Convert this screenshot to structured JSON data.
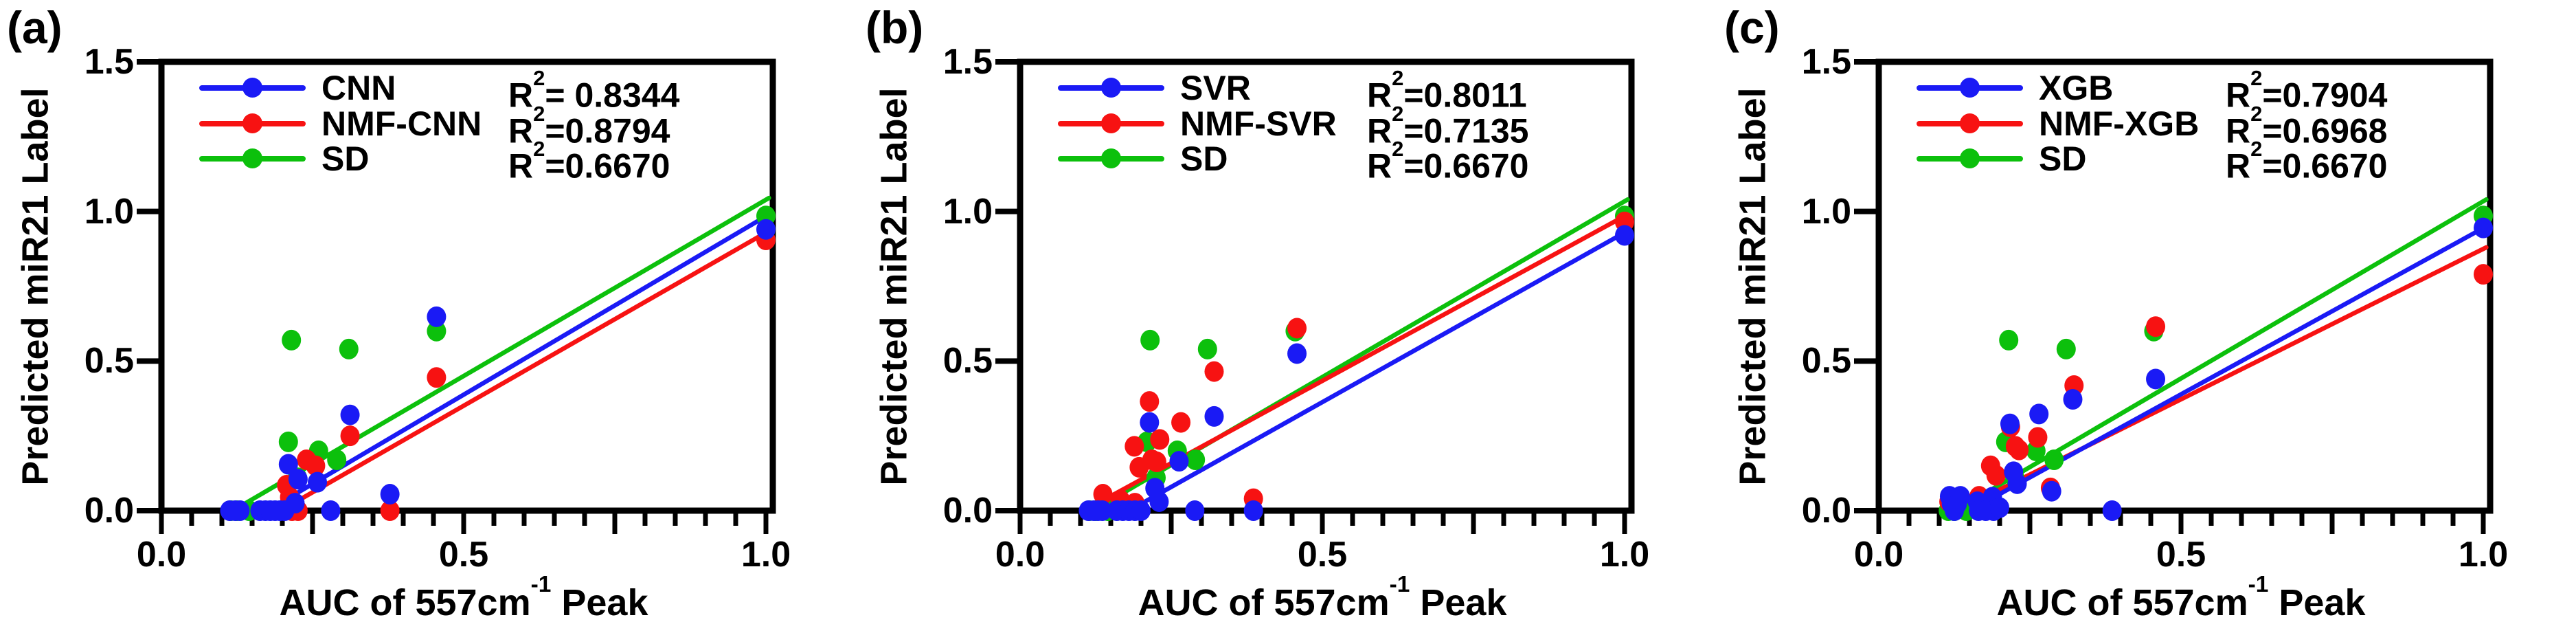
{
  "figure_bg": "#ffffff",
  "colors": {
    "blue": "#1a1af5",
    "red": "#f71212",
    "green": "#0cc00c",
    "axis": "#000000"
  },
  "axes": {
    "x_base": "AUC of 557cm",
    "x_sup": "-1",
    "x_rest": " Peak",
    "y": "Predicted miR21 Label",
    "x_ticks": [
      {
        "v": 0,
        "t": "0.0"
      },
      {
        "v": 0.5,
        "t": "0.5"
      },
      {
        "v": 1.0,
        "t": "1.0"
      }
    ],
    "y_ticks": [
      {
        "v": 0,
        "t": "0.0"
      },
      {
        "v": 0.5,
        "t": "0.5"
      },
      {
        "v": 1.0,
        "t": "1.0"
      },
      {
        "v": 1.5,
        "t": "1.5"
      }
    ],
    "x_minor_step": 0.05,
    "xlim": [
      0,
      1.01
    ],
    "ylim": [
      0,
      1.5
    ],
    "grid": false
  },
  "chart_data": [
    {
      "type": "scatter",
      "panel_label": "(a)",
      "legend_position": "inside top-left",
      "series": [
        {
          "name": "CNN",
          "color_key": "blue",
          "r2_base": "R",
          "r2_sup": "2",
          "r2_rest": "= 0.8344",
          "points": [
            [
              0.113,
              0
            ],
            [
              0.122,
              0
            ],
            [
              0.13,
              0
            ],
            [
              0.163,
              0
            ],
            [
              0.172,
              0
            ],
            [
              0.18,
              0
            ],
            [
              0.188,
              0
            ],
            [
              0.196,
              0
            ],
            [
              0.204,
              0
            ],
            [
              0.21,
              0.155
            ],
            [
              0.221,
              0.025
            ],
            [
              0.226,
              0.105
            ],
            [
              0.258,
              0.095
            ],
            [
              0.28,
              0
            ],
            [
              0.312,
              0.32
            ],
            [
              0.378,
              0.055
            ],
            [
              0.455,
              0.648
            ],
            [
              1.0,
              0.94
            ]
          ],
          "fit_line": [
            0.175,
            0,
            1.005,
            0.99
          ]
        },
        {
          "name": "NMF-CNN",
          "color_key": "red",
          "r2_base": "R",
          "r2_sup": "2",
          "r2_rest": "=0.8794",
          "points": [
            [
              0.207,
              0.085
            ],
            [
              0.212,
              0.045
            ],
            [
              0.216,
              0
            ],
            [
              0.226,
              0
            ],
            [
              0.24,
              0.17
            ],
            [
              0.255,
              0.15
            ],
            [
              0.312,
              0.25
            ],
            [
              0.378,
              0
            ],
            [
              0.455,
              0.445
            ],
            [
              1.0,
              0.905
            ]
          ],
          "fit_line": [
            0.197,
            0,
            1.005,
            0.935
          ]
        },
        {
          "name": "SD",
          "color_key": "green",
          "r2_base": "R",
          "r2_sup": "2",
          "r2_rest": "=0.6670",
          "points": [
            [
              0.115,
              0
            ],
            [
              0.125,
              0
            ],
            [
              0.145,
              0
            ],
            [
              0.21,
              0.23
            ],
            [
              0.215,
              0.57
            ],
            [
              0.225,
              0.11
            ],
            [
              0.26,
              0.2
            ],
            [
              0.29,
              0.17
            ],
            [
              0.31,
              0.54
            ],
            [
              0.455,
              0.6
            ],
            [
              1.0,
              0.985
            ]
          ],
          "fit_line": [
            0.118,
            0,
            1.005,
            1.045
          ]
        }
      ]
    },
    {
      "type": "scatter",
      "panel_label": "(b)",
      "legend_position": "inside top-left",
      "series": [
        {
          "name": "SVR",
          "color_key": "blue",
          "r2_base": "R",
          "r2_sup": "2",
          "r2_rest": "=0.8011",
          "points": [
            [
              0.113,
              0
            ],
            [
              0.122,
              0
            ],
            [
              0.129,
              0
            ],
            [
              0.136,
              0
            ],
            [
              0.16,
              0
            ],
            [
              0.17,
              0
            ],
            [
              0.18,
              0
            ],
            [
              0.19,
              0
            ],
            [
              0.2,
              0
            ],
            [
              0.214,
              0.295
            ],
            [
              0.223,
              0.075
            ],
            [
              0.23,
              0.03
            ],
            [
              0.263,
              0.165
            ],
            [
              0.289,
              0
            ],
            [
              0.321,
              0.315
            ],
            [
              0.386,
              0
            ],
            [
              0.458,
              0.525
            ],
            [
              1.0,
              0.92
            ]
          ],
          "fit_line": [
            0.18,
            0,
            1.005,
            0.935
          ]
        },
        {
          "name": "NMF-SVR",
          "color_key": "red",
          "r2_base": "R",
          "r2_sup": "2",
          "r2_rest": "=0.7135",
          "points": [
            [
              0.137,
              0.055
            ],
            [
              0.166,
              0.035
            ],
            [
              0.189,
              0.215
            ],
            [
              0.19,
              0.025
            ],
            [
              0.197,
              0.145
            ],
            [
              0.214,
              0.365
            ],
            [
              0.218,
              0.17
            ],
            [
              0.226,
              0.163
            ],
            [
              0.231,
              0.238
            ],
            [
              0.266,
              0.295
            ],
            [
              0.321,
              0.465
            ],
            [
              0.386,
              0.04
            ],
            [
              0.458,
              0.61
            ],
            [
              1.0,
              0.965
            ]
          ],
          "fit_line": [
            0.115,
            0.01,
            1.005,
            0.99
          ]
        },
        {
          "name": "SD",
          "color_key": "green",
          "r2_base": "R",
          "r2_sup": "2",
          "r2_rest": "=0.6670",
          "points": [
            [
              0.115,
              0
            ],
            [
              0.125,
              0
            ],
            [
              0.145,
              0
            ],
            [
              0.21,
              0.23
            ],
            [
              0.215,
              0.57
            ],
            [
              0.225,
              0.11
            ],
            [
              0.26,
              0.2
            ],
            [
              0.29,
              0.17
            ],
            [
              0.31,
              0.54
            ],
            [
              0.455,
              0.6
            ],
            [
              1.0,
              0.985
            ]
          ],
          "fit_line": [
            0.12,
            0,
            1.005,
            1.04
          ]
        }
      ]
    },
    {
      "type": "scatter",
      "panel_label": "(c)",
      "legend_position": "inside top-left",
      "series": [
        {
          "name": "XGB",
          "color_key": "blue",
          "r2_base": "R",
          "r2_sup": "2",
          "r2_rest": "=0.7904",
          "points": [
            [
              0.117,
              0.048
            ],
            [
              0.12,
              0.023
            ],
            [
              0.125,
              0
            ],
            [
              0.13,
              0.023
            ],
            [
              0.135,
              0.048
            ],
            [
              0.163,
              0.03
            ],
            [
              0.165,
              0
            ],
            [
              0.177,
              0
            ],
            [
              0.188,
              0.045
            ],
            [
              0.19,
              0
            ],
            [
              0.2,
              0.01
            ],
            [
              0.217,
              0.29
            ],
            [
              0.223,
              0.13
            ],
            [
              0.229,
              0.09
            ],
            [
              0.265,
              0.323
            ],
            [
              0.286,
              0.065
            ],
            [
              0.321,
              0.372
            ],
            [
              0.386,
              0
            ],
            [
              0.458,
              0.44
            ],
            [
              1.0,
              0.945
            ]
          ],
          "fit_line": [
            0.15,
            0,
            1.005,
            0.95
          ]
        },
        {
          "name": "NMF-XGB",
          "color_key": "red",
          "r2_base": "R",
          "r2_sup": "2",
          "r2_rest": "=0.6968",
          "points": [
            [
              0.116,
              0.03
            ],
            [
              0.166,
              0.048
            ],
            [
              0.185,
              0.15
            ],
            [
              0.194,
              0.118
            ],
            [
              0.218,
              0.28
            ],
            [
              0.226,
              0.215
            ],
            [
              0.232,
              0.203
            ],
            [
              0.263,
              0.245
            ],
            [
              0.284,
              0.076
            ],
            [
              0.323,
              0.418
            ],
            [
              0.458,
              0.615
            ],
            [
              1.0,
              0.79
            ]
          ],
          "fit_line": [
            0.145,
            0.015,
            1.005,
            0.88
          ]
        },
        {
          "name": "SD",
          "color_key": "green",
          "r2_base": "R",
          "r2_sup": "2",
          "r2_rest": "=0.6670",
          "points": [
            [
              0.115,
              0
            ],
            [
              0.125,
              0
            ],
            [
              0.145,
              0
            ],
            [
              0.21,
              0.23
            ],
            [
              0.215,
              0.57
            ],
            [
              0.225,
              0.11
            ],
            [
              0.26,
              0.2
            ],
            [
              0.29,
              0.17
            ],
            [
              0.31,
              0.54
            ],
            [
              0.455,
              0.6
            ],
            [
              1.0,
              0.985
            ]
          ],
          "fit_line": [
            0.127,
            0,
            1.005,
            1.04
          ]
        }
      ]
    }
  ]
}
